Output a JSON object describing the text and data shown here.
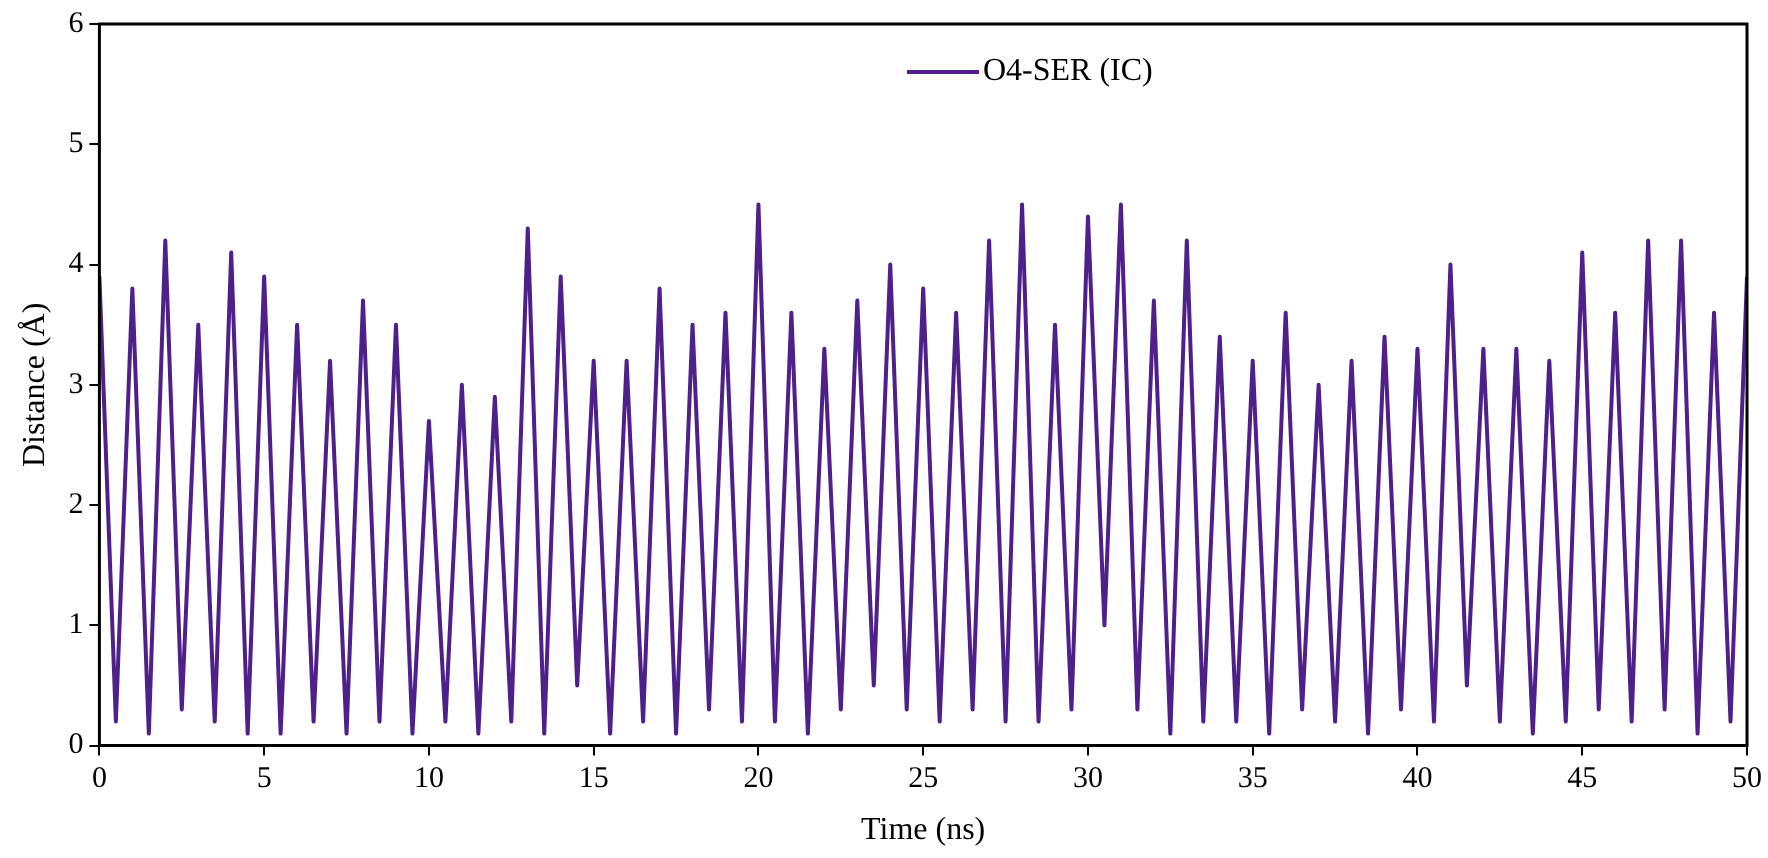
{
  "chart_data": {
    "type": "line",
    "xlabel": "Time (ns)",
    "ylabel": "Distance (Å)",
    "x": [
      0,
      0.5,
      1,
      1.5,
      2,
      2.5,
      3,
      3.5,
      4,
      4.5,
      5,
      5.5,
      6,
      6.5,
      7,
      7.5,
      8,
      8.5,
      9,
      9.5,
      10,
      10.5,
      11,
      11.5,
      12,
      12.5,
      13,
      13.5,
      14,
      14.5,
      15,
      15.5,
      16,
      16.5,
      17,
      17.5,
      18,
      18.5,
      19,
      19.5,
      20,
      20.5,
      21,
      21.5,
      22,
      22.5,
      23,
      23.5,
      24,
      24.5,
      25,
      25.5,
      26,
      26.5,
      27,
      27.5,
      28,
      28.5,
      29,
      29.5,
      30,
      30.5,
      31,
      31.5,
      32,
      32.5,
      33,
      33.5,
      34,
      34.5,
      35,
      35.5,
      36,
      36.5,
      37,
      37.5,
      38,
      38.5,
      39,
      39.5,
      40,
      40.5,
      41,
      41.5,
      42,
      42.5,
      43,
      43.5,
      44,
      44.5,
      45,
      45.5,
      46,
      46.5,
      47,
      47.5,
      48,
      48.5,
      49,
      49.5,
      50
    ],
    "series": [
      {
        "name": "O4-SER (IC)",
        "color": "#4f1f8a",
        "values": [
          3.9,
          0.2,
          3.8,
          0.1,
          4.2,
          0.3,
          3.5,
          0.2,
          4.1,
          0.1,
          3.9,
          0.1,
          3.5,
          0.2,
          3.2,
          0.1,
          3.7,
          0.2,
          3.5,
          0.1,
          2.7,
          0.2,
          3.0,
          0.1,
          2.9,
          0.2,
          4.3,
          0.1,
          3.9,
          0.5,
          3.2,
          0.1,
          3.2,
          0.2,
          3.8,
          0.1,
          3.5,
          0.3,
          3.6,
          0.2,
          4.5,
          0.2,
          3.6,
          0.1,
          3.3,
          0.3,
          3.7,
          0.5,
          4.0,
          0.3,
          3.8,
          0.2,
          3.6,
          0.3,
          4.2,
          0.2,
          4.5,
          0.2,
          3.5,
          0.3,
          4.4,
          1.0,
          4.5,
          0.3,
          3.7,
          0.1,
          4.2,
          0.2,
          3.4,
          0.2,
          3.2,
          0.1,
          3.6,
          0.3,
          3.0,
          0.2,
          3.2,
          0.1,
          3.4,
          0.3,
          3.3,
          0.2,
          4.0,
          0.5,
          3.3,
          0.2,
          3.3,
          0.1,
          3.2,
          0.2,
          4.1,
          0.3,
          3.6,
          0.2,
          4.2,
          0.3,
          4.2,
          0.1,
          3.6,
          0.2,
          3.9
        ]
      }
    ],
    "xlim": [
      0,
      50
    ],
    "xticks": [
      0,
      5,
      10,
      15,
      20,
      25,
      30,
      35,
      40,
      45,
      50
    ],
    "ylim": [
      0,
      6
    ],
    "yticks": [
      0,
      1,
      2,
      3,
      4,
      5,
      6
    ],
    "grid": false,
    "legend": "top right",
    "marker": "none",
    "line_style": "solid"
  }
}
